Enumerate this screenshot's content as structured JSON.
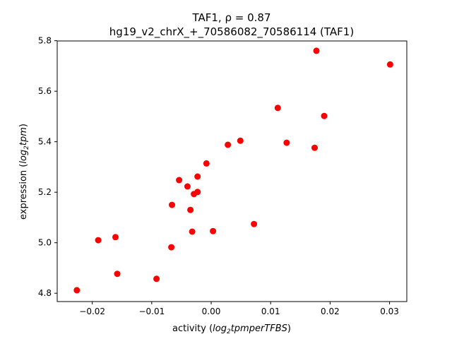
{
  "chart_data": {
    "type": "scatter",
    "title_line1": "TAF1, ρ = 0.87",
    "title_line2": "hg19_v2_chrX_+_70586082_70586114 (TAF1)",
    "xlabel": {
      "prefix": "activity (",
      "italic": "log",
      "sub": "2",
      "italic2": "tpmperTFBS",
      "suffix": ")"
    },
    "ylabel": {
      "prefix": "expression (",
      "italic": "log",
      "sub": "2",
      "italic2": "tpm",
      "suffix": ")"
    },
    "xlim": [
      -0.0259,
      0.0329
    ],
    "ylim": [
      4.767,
      5.799
    ],
    "xticks": [
      -0.02,
      -0.01,
      0.0,
      0.01,
      0.02,
      0.03
    ],
    "xtick_labels": [
      "−0.02",
      "−0.01",
      "0.00",
      "0.01",
      "0.02",
      "0.03"
    ],
    "yticks": [
      4.8,
      5.0,
      5.2,
      5.4,
      5.6,
      5.8
    ],
    "ytick_labels": [
      "4.8",
      "5.0",
      "5.2",
      "5.4",
      "5.6",
      "5.8"
    ],
    "color": "#ff0000",
    "points": [
      {
        "x": -0.0226,
        "y": 4.812
      },
      {
        "x": -0.019,
        "y": 5.01
      },
      {
        "x": -0.0161,
        "y": 5.022
      },
      {
        "x": -0.0158,
        "y": 4.877
      },
      {
        "x": -0.0092,
        "y": 4.857
      },
      {
        "x": -0.0067,
        "y": 4.982
      },
      {
        "x": -0.0066,
        "y": 5.15
      },
      {
        "x": -0.0054,
        "y": 5.248
      },
      {
        "x": -0.004,
        "y": 5.223
      },
      {
        "x": -0.0035,
        "y": 5.13
      },
      {
        "x": -0.0032,
        "y": 5.044
      },
      {
        "x": -0.0029,
        "y": 5.193
      },
      {
        "x": -0.0023,
        "y": 5.262
      },
      {
        "x": -0.0023,
        "y": 5.201
      },
      {
        "x": -0.0008,
        "y": 5.314
      },
      {
        "x": 0.0003,
        "y": 5.046
      },
      {
        "x": 0.0028,
        "y": 5.388
      },
      {
        "x": 0.0049,
        "y": 5.404
      },
      {
        "x": 0.0072,
        "y": 5.074
      },
      {
        "x": 0.0112,
        "y": 5.534
      },
      {
        "x": 0.0127,
        "y": 5.396
      },
      {
        "x": 0.0174,
        "y": 5.376
      },
      {
        "x": 0.0177,
        "y": 5.76
      },
      {
        "x": 0.019,
        "y": 5.502
      },
      {
        "x": 0.0301,
        "y": 5.706
      }
    ]
  }
}
